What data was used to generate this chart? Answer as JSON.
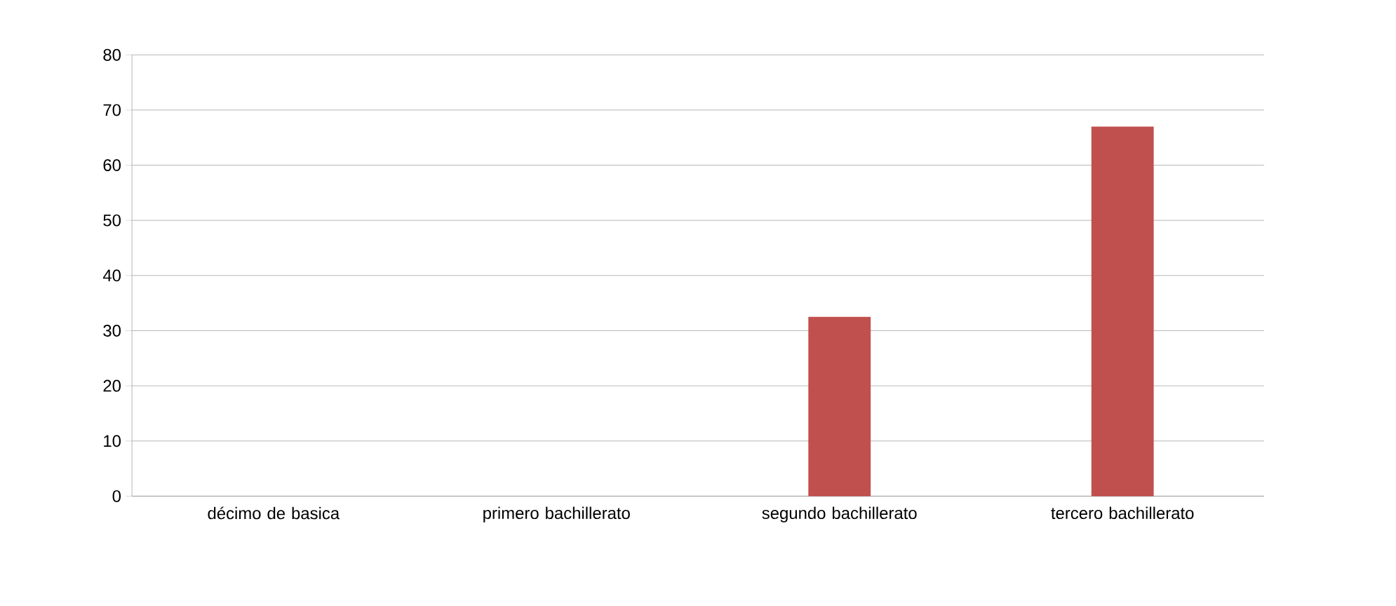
{
  "chart_data": {
    "type": "bar",
    "categories": [
      "décimo de basica",
      "primero bachillerato",
      "segundo bachillerato",
      "tercero bachillerato"
    ],
    "values": [
      0,
      0,
      32.5,
      67
    ],
    "color": "#c0504d",
    "ylim": [
      0,
      80
    ],
    "yticks": [
      0,
      10,
      20,
      30,
      40,
      50,
      60,
      70,
      80
    ],
    "grid": "y"
  }
}
